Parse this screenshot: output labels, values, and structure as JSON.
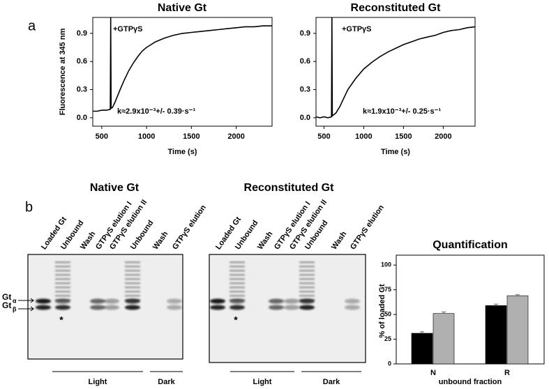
{
  "panel_a_label": "a",
  "panel_b_label": "b",
  "chart_data": [
    {
      "type": "line",
      "title": "Native Gt",
      "y_label": "Fluorescence at 345 nm",
      "x_label": "Time (s)",
      "annotation": "+GTPγS",
      "rate_label": "k≈2.9x10⁻³+/- 0.39·s⁻¹",
      "x": [
        400,
        450,
        500,
        550,
        595,
        600,
        605,
        620,
        650,
        700,
        750,
        800,
        850,
        900,
        950,
        1000,
        1100,
        1200,
        1300,
        1400,
        1500,
        1600,
        1700,
        1800,
        1900,
        2000,
        2100,
        2200,
        2300,
        2400
      ],
      "values": [
        0.07,
        0.07,
        0.08,
        0.08,
        0.09,
        1.07,
        0.1,
        0.11,
        0.17,
        0.29,
        0.4,
        0.5,
        0.58,
        0.65,
        0.71,
        0.75,
        0.81,
        0.85,
        0.88,
        0.9,
        0.91,
        0.92,
        0.93,
        0.94,
        0.95,
        0.96,
        0.97,
        0.97,
        0.98,
        0.98
      ],
      "color": "#000000",
      "xlim": [
        400,
        2400
      ],
      "ylim": [
        -0.09,
        1.07
      ],
      "xticks": [
        500,
        1000,
        1500,
        2000
      ],
      "yticks": [
        {
          "value": 0,
          "label": "0.0"
        },
        0.3,
        0.6,
        0.9
      ]
    },
    {
      "type": "line",
      "title": "Reconstituted Gt",
      "x_label": "Time (s)",
      "annotation": "+GTPγS",
      "rate_label": "k≈1.9x10⁻³+/- 0.25·s⁻¹",
      "x": [
        400,
        450,
        500,
        550,
        595,
        600,
        605,
        620,
        650,
        700,
        750,
        800,
        850,
        900,
        950,
        1000,
        1100,
        1200,
        1300,
        1400,
        1500,
        1600,
        1700,
        1800,
        1900,
        2000,
        2100,
        2200,
        2300,
        2400
      ],
      "values": [
        0.01,
        0.0,
        0.01,
        0.0,
        0.01,
        1.07,
        0.02,
        0.03,
        0.05,
        0.12,
        0.21,
        0.3,
        0.36,
        0.42,
        0.47,
        0.52,
        0.59,
        0.65,
        0.7,
        0.74,
        0.78,
        0.81,
        0.84,
        0.86,
        0.88,
        0.91,
        0.93,
        0.94,
        0.96,
        0.97
      ],
      "color": "#000000",
      "xlim": [
        400,
        2400
      ],
      "ylim": [
        -0.09,
        1.07
      ],
      "xticks": [
        500,
        1000,
        1500,
        2000
      ],
      "yticks": [
        {
          "value": 0,
          "label": "0.0"
        },
        0.3,
        0.6,
        0.9
      ]
    },
    {
      "type": "bar",
      "title": "Quantification",
      "y_label": "% of loaded Gt",
      "x_label": "unbound fraction",
      "categories": [
        "N",
        "R"
      ],
      "series": [
        {
          "color": "#000000",
          "values": [
            31,
            59
          ],
          "errors": [
            1.5,
            1.5
          ]
        },
        {
          "color": "#b0b0b0",
          "values": [
            51,
            69
          ],
          "errors": [
            1.5,
            1
          ]
        }
      ],
      "ylim": [
        0,
        110
      ],
      "yticks": [
        0,
        25,
        50,
        75,
        100
      ]
    }
  ],
  "gels": [
    {
      "title": "Native Gt",
      "lanes": [
        "Loaded Gt",
        "Unbound",
        "Wash",
        "GTPγS elution I",
        "GTPγS elution II",
        "Unbound",
        "Wash",
        "GTPγS elution"
      ],
      "groups": [
        "Light",
        "Dark"
      ]
    },
    {
      "title": "Reconstituted Gt",
      "lanes": [
        "Loaded Gt",
        "Unbound",
        "Wash",
        "GTPγS elution I",
        "GTPγS elution II",
        "Unbound",
        "Wash",
        "GTPγS elution"
      ],
      "groups": [
        "Light",
        "Dark"
      ]
    }
  ],
  "markers": [
    {
      "text": "Gt",
      "sub": "α"
    },
    {
      "text": "Gt",
      "sub": "β"
    }
  ],
  "asterisk": "*"
}
